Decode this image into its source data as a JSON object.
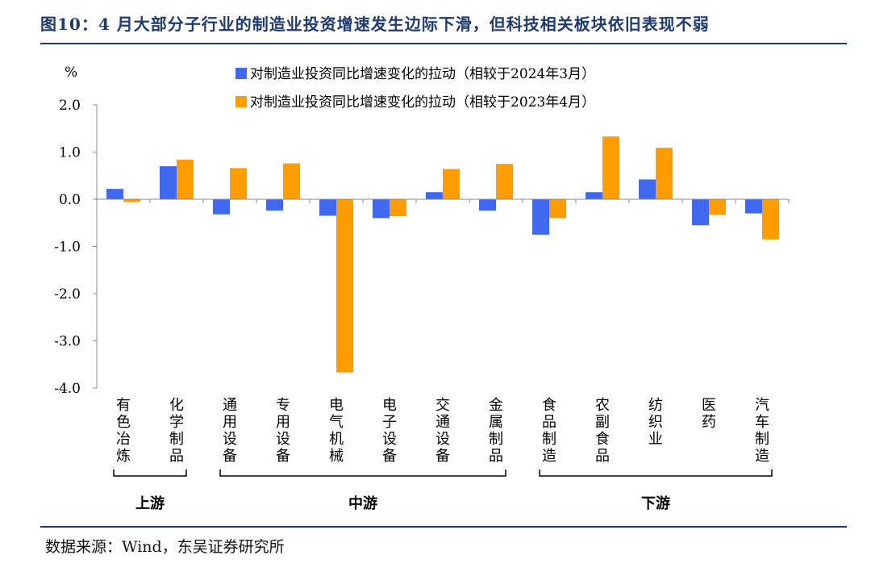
{
  "figure": {
    "title": "图10：4 月大部分子行业的制造业投资增速发生边际下滑，但科技相关板块依旧表现不弱",
    "source": "数据来源：Wind，东吴证券研究所"
  },
  "colors": {
    "series1": "#4068f0",
    "series2": "#ff9c00",
    "title": "#1f3a6e"
  },
  "chart_data": {
    "type": "bar",
    "unit_label": "%",
    "ylim": [
      -4.0,
      2.0
    ],
    "ytick_labels": [
      "2.0",
      "1.0",
      "0.0",
      "-1.0",
      "-2.0",
      "-3.0",
      "-4.0"
    ],
    "ytick_values": [
      2.0,
      1.0,
      0.0,
      -1.0,
      -2.0,
      -3.0,
      -4.0
    ],
    "categories": [
      "有色冶炼",
      "化学制品",
      "通用设备",
      "专用设备",
      "电气机械",
      "电子设备",
      "交通设备",
      "金属制品",
      "食品制造",
      "农副食品",
      "纺织业",
      "医药",
      "汽车制造"
    ],
    "series": [
      {
        "name": "对制造业投资同比增速变化的拉动（相较于2024年3月）",
        "values": [
          0.22,
          0.7,
          -0.32,
          -0.24,
          -0.35,
          -0.4,
          0.15,
          -0.24,
          -0.75,
          0.15,
          0.42,
          -0.55,
          -0.3
        ]
      },
      {
        "name": "对制造业投资同比增速变化的拉动（相较于2023年4月）",
        "values": [
          -0.06,
          0.84,
          0.66,
          0.76,
          -3.67,
          -0.36,
          0.64,
          0.75,
          -0.4,
          1.33,
          1.09,
          -0.33,
          -0.85
        ]
      }
    ],
    "groups": [
      {
        "label": "上游",
        "from": 0,
        "to": 1
      },
      {
        "label": "中游",
        "from": 2,
        "to": 7
      },
      {
        "label": "下游",
        "from": 8,
        "to": 12
      }
    ],
    "grid": false,
    "legend_position": "top-center"
  }
}
